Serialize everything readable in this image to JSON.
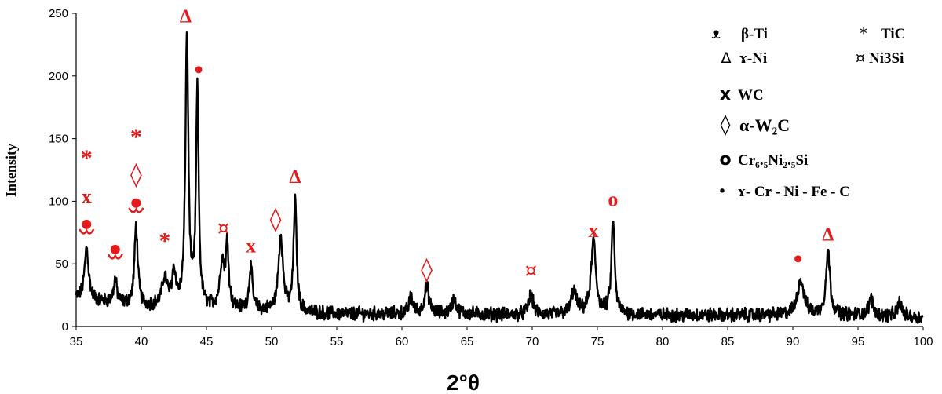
{
  "chart_data": {
    "type": "line",
    "xlabel": "2°θ",
    "ylabel": "Intensity",
    "xlim": [
      35,
      100
    ],
    "ylim": [
      0,
      250
    ],
    "x_ticks": [
      "35",
      "40",
      "45",
      "50",
      "55",
      "60",
      "65",
      "70",
      "75",
      "80",
      "85",
      "90",
      "95",
      "100"
    ],
    "y_ticks": [
      "0",
      "50",
      "100",
      "150",
      "200",
      "250"
    ],
    "grid": false,
    "legend_position": "top-right",
    "series": [
      {
        "line_color": "#000000",
        "baseline": [
          [
            35,
            22
          ],
          [
            40,
            16
          ],
          [
            45,
            14
          ],
          [
            50,
            12
          ],
          [
            55,
            10
          ],
          [
            60,
            10
          ],
          [
            65,
            10
          ],
          [
            70,
            9
          ],
          [
            75,
            10
          ],
          [
            80,
            9
          ],
          [
            85,
            9
          ],
          [
            90,
            9
          ],
          [
            95,
            9
          ],
          [
            100,
            7
          ]
        ],
        "peaks": [
          {
            "x": 35.8,
            "y": 63,
            "w": 0.28
          },
          {
            "x": 38.0,
            "y": 37,
            "w": 0.22
          },
          {
            "x": 39.6,
            "y": 80,
            "w": 0.22
          },
          {
            "x": 41.8,
            "y": 38,
            "w": 0.35
          },
          {
            "x": 42.5,
            "y": 42,
            "w": 0.25
          },
          {
            "x": 43.5,
            "y": 232,
            "w": 0.2
          },
          {
            "x": 44.3,
            "y": 186,
            "w": 0.18
          },
          {
            "x": 46.2,
            "y": 50,
            "w": 0.3
          },
          {
            "x": 46.6,
            "y": 62,
            "w": 0.2
          },
          {
            "x": 48.4,
            "y": 47,
            "w": 0.22
          },
          {
            "x": 50.7,
            "y": 73,
            "w": 0.3
          },
          {
            "x": 51.8,
            "y": 101,
            "w": 0.2
          },
          {
            "x": 60.7,
            "y": 24,
            "w": 0.25
          },
          {
            "x": 61.9,
            "y": 32,
            "w": 0.3
          },
          {
            "x": 64.0,
            "y": 22,
            "w": 0.3
          },
          {
            "x": 69.9,
            "y": 26,
            "w": 0.3
          },
          {
            "x": 73.2,
            "y": 28,
            "w": 0.35
          },
          {
            "x": 74.7,
            "y": 68,
            "w": 0.32
          },
          {
            "x": 76.2,
            "y": 85,
            "w": 0.22
          },
          {
            "x": 90.6,
            "y": 37,
            "w": 0.45
          },
          {
            "x": 92.7,
            "y": 60,
            "w": 0.28
          },
          {
            "x": 96.0,
            "y": 22,
            "w": 0.3
          },
          {
            "x": 98.2,
            "y": 19,
            "w": 0.3
          }
        ]
      }
    ],
    "annotations": [
      {
        "text": "*",
        "x": 35.8,
        "y": 135,
        "kind": "text",
        "size": 30
      },
      {
        "text": "x",
        "x": 35.8,
        "y": 104,
        "kind": "text",
        "size": 26
      },
      {
        "kind": "beta",
        "x": 35.8,
        "y": 79
      },
      {
        "kind": "beta",
        "x": 38.0,
        "y": 59
      },
      {
        "text": "*",
        "x": 39.6,
        "y": 152,
        "kind": "text",
        "size": 30
      },
      {
        "text": "◊",
        "x": 39.6,
        "y": 122,
        "kind": "sym",
        "size": 30
      },
      {
        "kind": "beta",
        "x": 39.6,
        "y": 96
      },
      {
        "text": "*",
        "x": 41.8,
        "y": 69,
        "kind": "text",
        "size": 30
      },
      {
        "text": "Δ",
        "x": 43.4,
        "y": 248,
        "kind": "text",
        "size": 24
      },
      {
        "kind": "dot",
        "x": 44.4,
        "y": 205
      },
      {
        "text": "¤",
        "x": 46.3,
        "y": 79,
        "kind": "sym",
        "size": 24
      },
      {
        "text": "x",
        "x": 48.4,
        "y": 65,
        "kind": "text",
        "size": 26
      },
      {
        "text": "◊",
        "x": 50.3,
        "y": 86,
        "kind": "sym",
        "size": 30
      },
      {
        "text": "Δ",
        "x": 51.8,
        "y": 120,
        "kind": "text",
        "size": 24
      },
      {
        "text": "◊",
        "x": 61.9,
        "y": 46,
        "kind": "sym",
        "size": 30
      },
      {
        "text": "¤",
        "x": 69.9,
        "y": 45,
        "kind": "sym",
        "size": 24
      },
      {
        "text": "x",
        "x": 74.7,
        "y": 77,
        "kind": "text",
        "size": 26
      },
      {
        "text": "o",
        "x": 76.2,
        "y": 102,
        "kind": "text",
        "size": 26
      },
      {
        "kind": "dot",
        "x": 90.4,
        "y": 54
      },
      {
        "text": "Δ",
        "x": 92.7,
        "y": 74,
        "kind": "text",
        "size": 24
      }
    ],
    "legend": [
      {
        "symbol": "ᴥ",
        "label": "β-Ti"
      },
      {
        "symbol": "*",
        "label": "TiC"
      },
      {
        "symbol": "Δ",
        "label": "ɤ-Ni"
      },
      {
        "symbol": "¤",
        "label": "Ni3Si"
      },
      {
        "symbol": "x",
        "label": "WC"
      },
      {
        "symbol": "◊",
        "label": "α-W₂C"
      },
      {
        "symbol": "o",
        "label": "Cr₆.₅Ni₂.₅Si"
      },
      {
        "symbol": "•",
        "label": "ɤ- Cr  - Ni - Fe - C"
      }
    ]
  }
}
